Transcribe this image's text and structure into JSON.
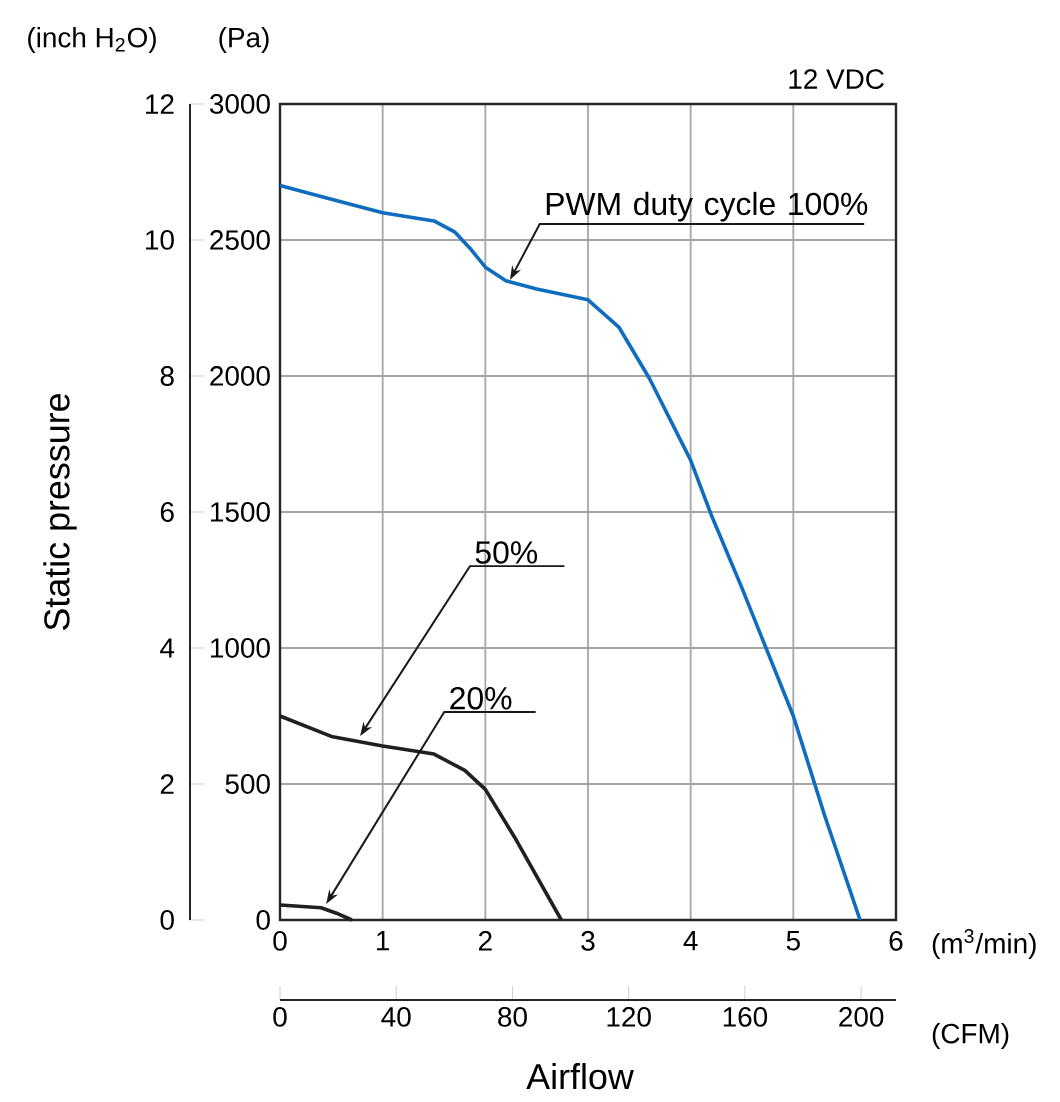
{
  "chart_data": {
    "type": "line",
    "title": "12 VDC",
    "xlabel": "Airflow",
    "ylabel": "Static pressure",
    "y2label": "(Pa)",
    "x2label": "(CFM)",
    "annotations": [
      "(inch H$_{2}$O)",
      "(m$^{3}$/min)"
    ],
    "xlim": [
      0,
      6
    ],
    "xticks": [
      0,
      1,
      2,
      3,
      4,
      5,
      6
    ],
    "y2lim": [
      0,
      3000
    ],
    "y2ticks": [
      0,
      500,
      1000,
      1500,
      2000,
      2500,
      3000
    ],
    "ylim": [
      0,
      12
    ],
    "yticks": [
      0,
      2,
      4,
      6,
      8,
      10,
      12
    ],
    "x2lim": [
      0,
      212
    ],
    "x2ticks": [
      0,
      40,
      80,
      120,
      160,
      200
    ],
    "grid": true,
    "series": [
      {
        "name": "PWM duty cycle 100%",
        "color": "#0f6cbf",
        "axis": "y2",
        "x": [
          0,
          0.5,
          1,
          1.5,
          1.7,
          1.85,
          2,
          2.2,
          2.5,
          3,
          3.3,
          3.6,
          3.9,
          4,
          4.2,
          4.5,
          5,
          5.3,
          5.65
        ],
        "values": [
          2700,
          2650,
          2600,
          2570,
          2530,
          2470,
          2400,
          2350,
          2320,
          2280,
          2180,
          1990,
          1765,
          1690,
          1490,
          1220,
          750,
          390,
          0
        ]
      },
      {
        "name": "50%",
        "color": "#231f20",
        "axis": "y2",
        "x": [
          0,
          0.5,
          1,
          1.5,
          1.8,
          2,
          2.3,
          2.74
        ],
        "values": [
          750,
          675,
          640,
          610,
          550,
          480,
          295,
          0
        ]
      },
      {
        "name": "20%",
        "color": "#231f20",
        "axis": "y2",
        "x": [
          0,
          0.4,
          0.55,
          0.7
        ],
        "values": [
          55,
          45,
          25,
          0
        ]
      }
    ]
  }
}
